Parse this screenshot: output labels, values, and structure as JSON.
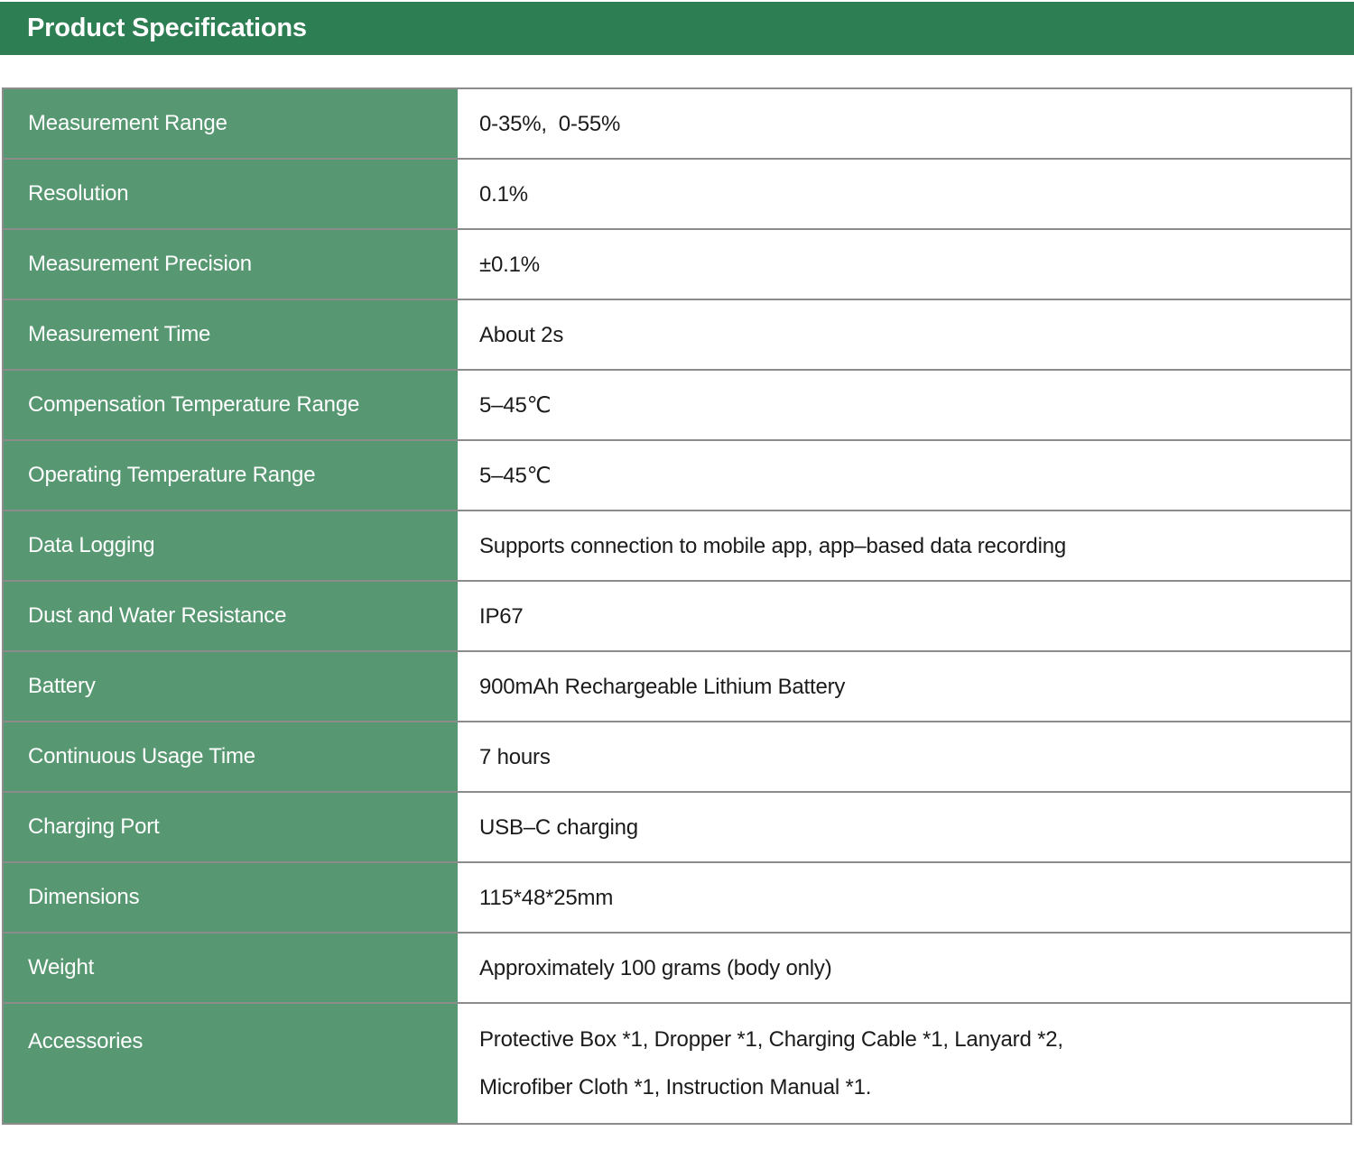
{
  "header": {
    "title": "Product Specifications"
  },
  "colors": {
    "title_bar_bg": "#2e7e54",
    "label_column_bg": "#579872",
    "label_text": "#ffffff",
    "value_text": "#1b1b1b",
    "row_border": "rgba(0,0,0,0.45)"
  },
  "table": {
    "rows": [
      {
        "label": "Measurement Range",
        "value": "0-35%,  0-55%"
      },
      {
        "label": "Resolution",
        "value": "0.1%"
      },
      {
        "label": "Measurement Precision",
        "value": "±0.1%"
      },
      {
        "label": "Measurement Time",
        "value": "About 2s"
      },
      {
        "label": "Compensation Temperature Range",
        "value": "5–45℃"
      },
      {
        "label": "Operating Temperature Range",
        "value": "5–45℃"
      },
      {
        "label": "Data Logging",
        "value": "Supports connection to mobile app, app–based data recording"
      },
      {
        "label": "Dust and Water Resistance",
        "value": "IP67"
      },
      {
        "label": "Battery",
        "value": "900mAh Rechargeable Lithium Battery"
      },
      {
        "label": "Continuous Usage Time",
        "value": "7 hours"
      },
      {
        "label": "Charging Port",
        "value": "USB–C charging"
      },
      {
        "label": "Dimensions",
        "value": "115*48*25mm"
      },
      {
        "label": "Weight",
        "value": "Approximately 100 grams (body only)"
      },
      {
        "label": "Accessories",
        "value": "Protective Box *1, Dropper *1, Charging Cable *1, Lanyard *2,\nMicrofiber Cloth *1, Instruction Manual *1.",
        "tall": true
      }
    ]
  }
}
